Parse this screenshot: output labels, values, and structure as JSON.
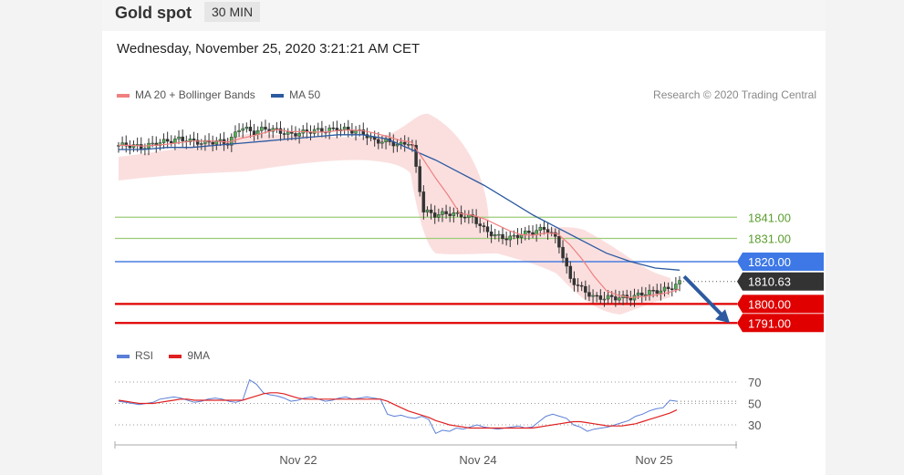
{
  "header": {
    "title": "Gold spot",
    "timeframe": "30 MIN"
  },
  "datetime": "Wednesday, November 25, 2020 3:21:21 AM CET",
  "credit": "Research © 2020 Trading Central",
  "colors": {
    "bollinger": "#f08080",
    "ma50": "#2c5aa0",
    "rsi": "#5b7fd6",
    "rsi_ma": "#e02020",
    "support": "#e00000",
    "resistance_green": "#9ccc78",
    "resistance_blue": "#4a7de0",
    "current": "#333333"
  },
  "chart_data": [
    {
      "type": "line",
      "subtype": "candlestick price chart (30 min)",
      "title": "Gold spot",
      "legend": [
        {
          "name": "MA 20 + Bollinger Bands",
          "color": "#f08080"
        },
        {
          "name": "MA 50",
          "color": "#2c5aa0"
        }
      ],
      "x_ticks": [
        "Nov 22",
        "Nov 24",
        "Nov 25"
      ],
      "price_levels": [
        {
          "label": "1841.00",
          "value": 1841.0,
          "kind": "resistance"
        },
        {
          "label": "1831.00",
          "value": 1831.0,
          "kind": "resistance"
        },
        {
          "label": "1820.00",
          "value": 1820.0,
          "kind": "pivot"
        },
        {
          "label": "1810.63",
          "value": 1810.63,
          "kind": "current"
        },
        {
          "label": "1800.00",
          "value": 1800.0,
          "kind": "support"
        },
        {
          "label": "1791.00",
          "value": 1791.0,
          "kind": "support"
        }
      ],
      "close_path": [
        1875,
        1875,
        1874,
        1876,
        1877,
        1878,
        1877,
        1876,
        1877,
        1876,
        1884,
        1881,
        1883,
        1882,
        1880,
        1881,
        1882,
        1882,
        1883,
        1882,
        1881,
        1877,
        1877,
        1875,
        1877,
        1844,
        1842,
        1843,
        1842,
        1841,
        1835,
        1832,
        1831,
        1833,
        1834,
        1836,
        1830,
        1812,
        1807,
        1803,
        1803,
        1803,
        1803,
        1805,
        1806,
        1807,
        1810
      ],
      "ma50_path": [
        1873,
        1873,
        1874,
        1874,
        1875,
        1876,
        1877,
        1878,
        1879,
        1880,
        1880,
        1878,
        1873,
        1868,
        1862,
        1856,
        1849,
        1842,
        1836,
        1830,
        1824,
        1820,
        1817,
        1816
      ],
      "forecast_target": 1791.0,
      "ylim": [
        1785,
        1900
      ]
    },
    {
      "type": "line",
      "title": "RSI",
      "legend": [
        {
          "name": "RSI",
          "color": "#5b7fd6"
        },
        {
          "name": "9MA",
          "color": "#e02020"
        }
      ],
      "y_ticks": [
        70,
        50,
        30
      ],
      "ylim": [
        15,
        85
      ],
      "rsi": [
        52,
        51,
        50,
        49,
        50,
        51,
        54,
        55,
        56,
        55,
        53,
        51,
        52,
        54,
        55,
        54,
        52,
        51,
        53,
        72,
        68,
        60,
        58,
        57,
        55,
        52,
        53,
        55,
        56,
        54,
        52,
        53,
        55,
        56,
        54,
        55,
        56,
        55,
        54,
        40,
        38,
        39,
        37,
        36,
        38,
        35,
        22,
        25,
        24,
        27,
        26,
        28,
        30,
        28,
        27,
        26,
        27,
        28,
        29,
        27,
        28,
        33,
        38,
        40,
        38,
        36,
        30,
        28,
        24,
        26,
        27,
        28,
        30,
        32,
        34,
        38,
        40,
        43,
        45,
        46,
        53,
        52
      ],
      "ma9": [
        53,
        52,
        51,
        50,
        50,
        50,
        51,
        52,
        53,
        54,
        54,
        53,
        53,
        53,
        53,
        53,
        53,
        53,
        53,
        55,
        57,
        59,
        60,
        60,
        59,
        57,
        55,
        54,
        54,
        54,
        54,
        54,
        54,
        54,
        54,
        54,
        54,
        54,
        54,
        52,
        49,
        46,
        43,
        41,
        39,
        37,
        34,
        32,
        30,
        29,
        28,
        27,
        27,
        27,
        27,
        27,
        27,
        27,
        27,
        27,
        27,
        28,
        29,
        30,
        31,
        32,
        33,
        33,
        32,
        31,
        30,
        29,
        29,
        29,
        30,
        31,
        33,
        35,
        37,
        39,
        41,
        44
      ]
    }
  ]
}
